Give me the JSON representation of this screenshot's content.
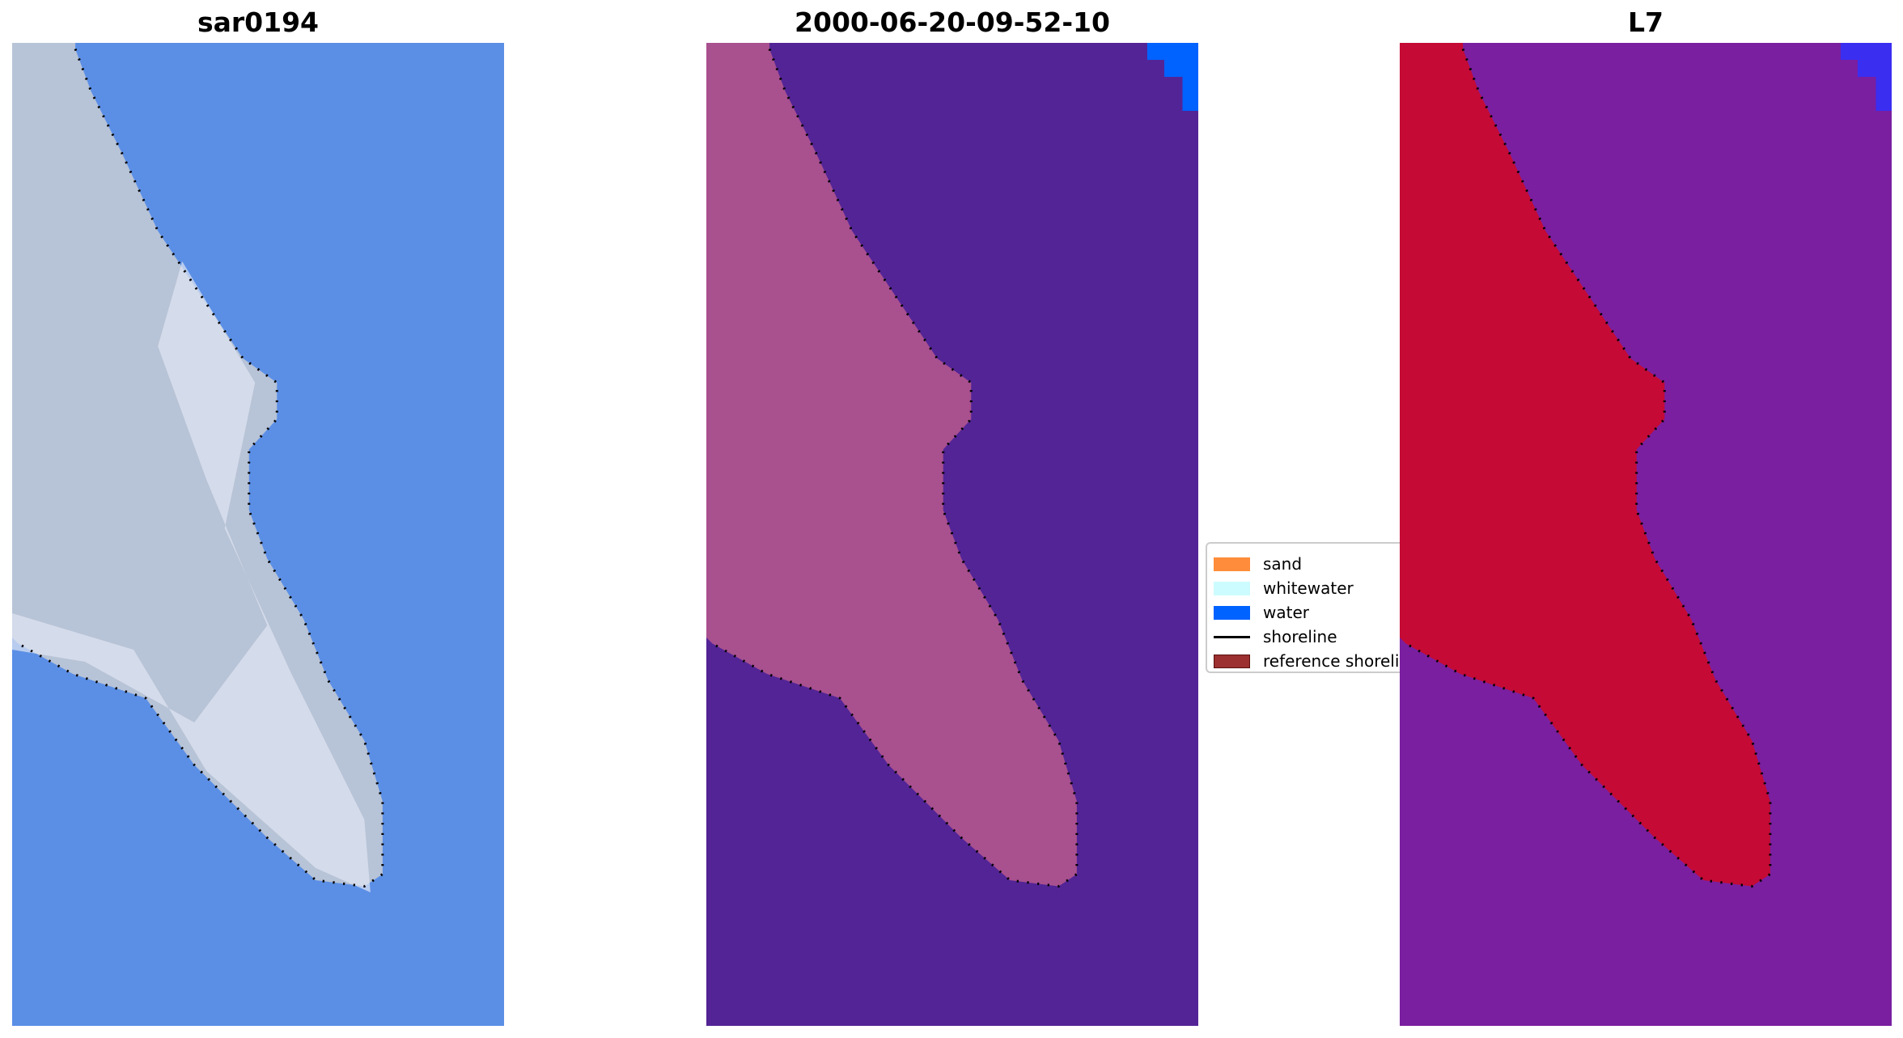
{
  "panels": [
    {
      "title": "sar0194",
      "water_color": "#5b8fe6",
      "sand_color": "#b7c3d6"
    },
    {
      "title": "2000-06-20-09-52-10",
      "water_color": "#532496",
      "sand_color": "#a9508f"
    },
    {
      "title": "L7",
      "water_color": "#7a1fa0",
      "sand_color": "#c40a35"
    }
  ],
  "legend": {
    "placement": "center",
    "items": [
      {
        "label": "sand",
        "color": "#ff8c3a",
        "kind": "patch"
      },
      {
        "label": "whitewater",
        "color": "#ccfcff",
        "kind": "patch"
      },
      {
        "label": "water",
        "color": "#0062ff",
        "kind": "patch"
      },
      {
        "label": "shoreline",
        "color": "#000000",
        "kind": "line"
      },
      {
        "label": "reference shoreline",
        "color": "#9c2f2f",
        "kind": "patch"
      }
    ]
  },
  "chart_data": {
    "type": "image",
    "titles": [
      "sar0194",
      "2000-06-20-09-52-10",
      "L7"
    ]
  }
}
